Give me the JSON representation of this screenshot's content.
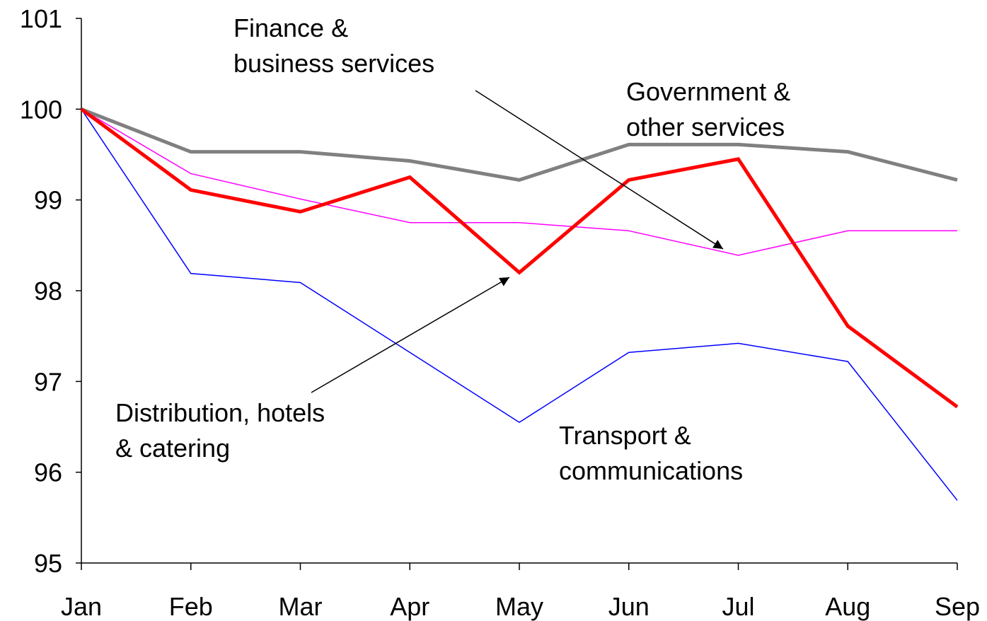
{
  "chart_data": {
    "type": "line",
    "categories": [
      "Jan",
      "Feb",
      "Mar",
      "Apr",
      "May",
      "Jun",
      "Jul",
      "Aug",
      "Sep"
    ],
    "ylim": [
      95,
      101
    ],
    "yticks": [
      95,
      96,
      97,
      98,
      99,
      100,
      101
    ],
    "series": [
      {
        "name": [
          "Transport &",
          "communications"
        ],
        "color": "#0000ff",
        "width": 1.5,
        "values": [
          100,
          98.19,
          98.09,
          97.32,
          96.55,
          97.32,
          97.42,
          97.22,
          95.69
        ]
      },
      {
        "name": [
          "Finance &",
          "business services"
        ],
        "color": "#ff00ff",
        "width": 1.5,
        "values": [
          100,
          99.29,
          99.01,
          98.75,
          98.75,
          98.66,
          98.39,
          98.66,
          98.66
        ]
      },
      {
        "name": [
          "Government &",
          "other services"
        ],
        "color": "#808080",
        "width": 5,
        "values": [
          100,
          99.53,
          99.53,
          99.43,
          99.22,
          99.61,
          99.61,
          99.53,
          99.22
        ]
      },
      {
        "name": [
          "Distribution, hotels",
          "& catering"
        ],
        "color": "#ff0000",
        "width": 5,
        "values": [
          100,
          99.11,
          98.87,
          99.25,
          98.2,
          99.22,
          99.45,
          97.61,
          96.72
        ]
      }
    ]
  }
}
